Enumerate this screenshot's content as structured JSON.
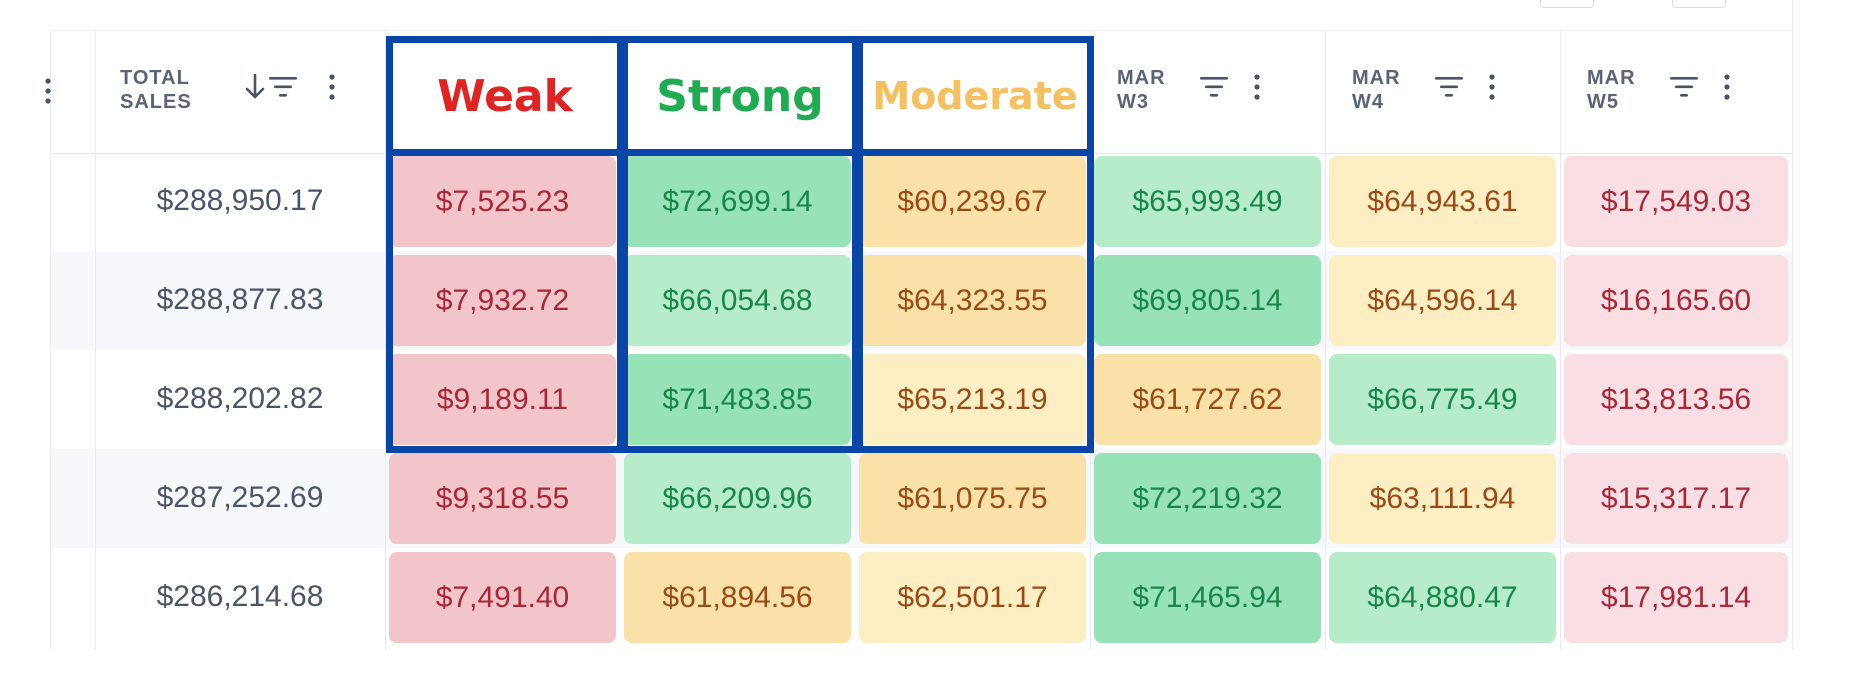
{
  "columns": [
    {
      "key": "total_sales",
      "label": "TOTAL\nSALES"
    },
    {
      "key": "c1",
      "label": "Weak",
      "highlight": true,
      "color": "#e02424"
    },
    {
      "key": "c2",
      "label": "Strong",
      "highlight": true,
      "color": "#1fab52"
    },
    {
      "key": "c3",
      "label": "Moderate",
      "highlight": true,
      "color": "#f5c060"
    },
    {
      "key": "w3",
      "label": "MAR\nW3"
    },
    {
      "key": "w4",
      "label": "MAR\nW4"
    },
    {
      "key": "w5",
      "label": "MAR\nW5"
    }
  ],
  "rows": [
    {
      "total": "$288,950.17",
      "cells": [
        [
          "$7,525.23",
          "weak2"
        ],
        [
          "$72,699.14",
          "strong2"
        ],
        [
          "$60,239.67",
          "mod2"
        ],
        [
          "$65,993.49",
          "strong1"
        ],
        [
          "$64,943.61",
          "mod1"
        ],
        [
          "$17,549.03",
          "weak1"
        ]
      ]
    },
    {
      "total": "$288,877.83",
      "cells": [
        [
          "$7,932.72",
          "weak2"
        ],
        [
          "$66,054.68",
          "strong1"
        ],
        [
          "$64,323.55",
          "mod2"
        ],
        [
          "$69,805.14",
          "strong2"
        ],
        [
          "$64,596.14",
          "mod1"
        ],
        [
          "$16,165.60",
          "weak1"
        ]
      ]
    },
    {
      "total": "$288,202.82",
      "cells": [
        [
          "$9,189.11",
          "weak2"
        ],
        [
          "$71,483.85",
          "strong2"
        ],
        [
          "$65,213.19",
          "mod1"
        ],
        [
          "$61,727.62",
          "mod2"
        ],
        [
          "$66,775.49",
          "strong1"
        ],
        [
          "$13,813.56",
          "weak1"
        ]
      ]
    },
    {
      "total": "$287,252.69",
      "cells": [
        [
          "$9,318.55",
          "weak2"
        ],
        [
          "$66,209.96",
          "strong1"
        ],
        [
          "$61,075.75",
          "mod2"
        ],
        [
          "$72,219.32",
          "strong2"
        ],
        [
          "$63,111.94",
          "mod1"
        ],
        [
          "$15,317.17",
          "weak1"
        ]
      ]
    },
    {
      "total": "$286,214.68",
      "cells": [
        [
          "$7,491.40",
          "weak2"
        ],
        [
          "$61,894.56",
          "mod2"
        ],
        [
          "$62,501.17",
          "mod1"
        ],
        [
          "$71,465.94",
          "strong2"
        ],
        [
          "$64,880.47",
          "strong1"
        ],
        [
          "$17,981.14",
          "weak1"
        ]
      ]
    }
  ],
  "palette": {
    "weak2": {
      "bg": "#f2c5cb",
      "fg": "#a8283a"
    },
    "weak1": {
      "bg": "#f9dfe3",
      "fg": "#a8283a"
    },
    "strong2": {
      "bg": "#97e2b7",
      "fg": "#17864a"
    },
    "strong1": {
      "bg": "#b6ecca",
      "fg": "#17864a"
    },
    "mod2": {
      "bg": "#f9e1a8",
      "fg": "#9a4a14"
    },
    "mod1": {
      "bg": "#fdeec4",
      "fg": "#9a4a14"
    },
    "row_alt": "#f6f8fb",
    "frame": "#0a45a8"
  }
}
